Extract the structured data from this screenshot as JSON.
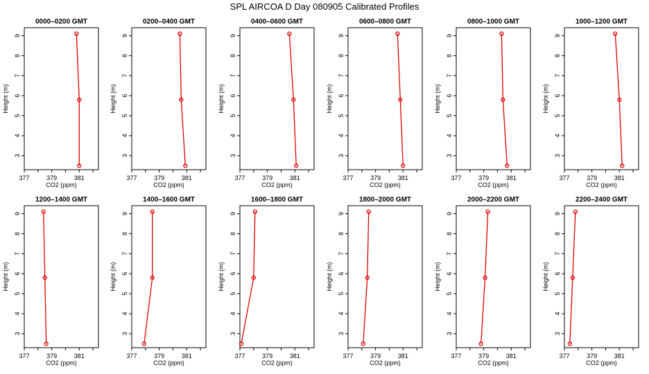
{
  "title": "SPL AIRCOA D  Day 080905  Calibrated Profiles",
  "chart_data": {
    "type": "line",
    "xlabel": "CO2 (ppm)",
    "ylabel": "Height (m)",
    "xlim": [
      377,
      382.4
    ],
    "ylim": [
      2.3,
      9.4
    ],
    "xticks": [
      "377",
      "379",
      "381"
    ],
    "yticks": [
      "3",
      "4",
      "5",
      "6",
      "7",
      "8",
      "9"
    ],
    "heights": [
      9.1,
      5.8,
      2.5
    ],
    "line_color": "#dd0000",
    "panels": [
      {
        "title": "0000–0200 GMT",
        "co2": [
          380.8,
          381.0,
          381.0
        ]
      },
      {
        "title": "0200–0400 GMT",
        "co2": [
          380.5,
          380.6,
          380.9
        ]
      },
      {
        "title": "0400–0600 GMT",
        "co2": [
          380.6,
          380.9,
          381.1
        ]
      },
      {
        "title": "0600–0800 GMT",
        "co2": [
          380.6,
          380.8,
          381.0
        ]
      },
      {
        "title": "0800–1000 GMT",
        "co2": [
          380.3,
          380.4,
          380.7
        ]
      },
      {
        "title": "1000–1200 GMT",
        "co2": [
          380.7,
          381.0,
          381.2
        ]
      },
      {
        "title": "1200–1400 GMT",
        "co2": [
          378.4,
          378.5,
          378.6
        ]
      },
      {
        "title": "1400–1600 GMT",
        "co2": [
          378.5,
          378.5,
          377.9
        ]
      },
      {
        "title": "1600–1800 GMT",
        "co2": [
          378.1,
          378.0,
          377.1
        ]
      },
      {
        "title": "1800–2000 GMT",
        "co2": [
          378.5,
          378.4,
          378.1
        ]
      },
      {
        "title": "2000–2200 GMT",
        "co2": [
          379.3,
          379.1,
          378.8
        ]
      },
      {
        "title": "2200–2400 GMT",
        "co2": [
          377.8,
          377.6,
          377.4
        ]
      }
    ]
  }
}
